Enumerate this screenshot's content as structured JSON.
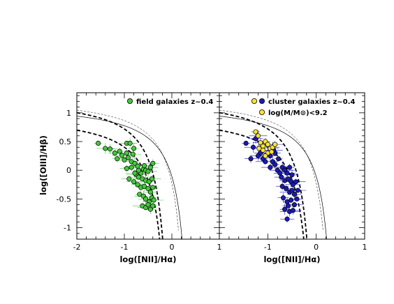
{
  "chart_data": [
    {
      "type": "scatter",
      "xlabel": "log([NII]/Hα)",
      "ylabel": "log([OIII]/Hβ)",
      "xlim": [
        -2,
        1
      ],
      "ylim": [
        -1.2,
        1.35
      ],
      "x_ticks": [
        "-2",
        "-1",
        "0",
        "1"
      ],
      "y_ticks": [
        "-1",
        "-0.5",
        "0",
        "0.5",
        "1"
      ],
      "legend": [
        {
          "label": "field galaxies z~0.4",
          "color": "#44c83c"
        }
      ],
      "legend_position": "top-right",
      "series": [
        {
          "name": "field galaxies z~0.4",
          "color": "#44c83c",
          "points": [
            [
              -1.55,
              0.47
            ],
            [
              -1.4,
              0.38
            ],
            [
              -1.3,
              0.37
            ],
            [
              -1.2,
              0.3
            ],
            [
              -1.15,
              0.2
            ],
            [
              -1.05,
              0.26
            ],
            [
              -0.95,
              0.47
            ],
            [
              -0.88,
              0.47
            ],
            [
              -0.8,
              0.38
            ],
            [
              -0.95,
              0.3
            ],
            [
              -0.92,
              0.22
            ],
            [
              -1.0,
              0.18
            ],
            [
              -0.85,
              0.15
            ],
            [
              -0.78,
              0.12
            ],
            [
              -0.72,
              0.07
            ],
            [
              -0.85,
              0.05
            ],
            [
              -0.95,
              0.03
            ],
            [
              -0.6,
              0.02
            ],
            [
              -0.55,
              0.0
            ],
            [
              -0.5,
              -0.02
            ],
            [
              -0.45,
              0.05
            ],
            [
              -0.4,
              0.12
            ],
            [
              -0.65,
              -0.05
            ],
            [
              -0.75,
              -0.08
            ],
            [
              -0.7,
              -0.12
            ],
            [
              -0.62,
              -0.15
            ],
            [
              -0.55,
              -0.18
            ],
            [
              -0.48,
              -0.2
            ],
            [
              -0.42,
              -0.15
            ],
            [
              -0.8,
              -0.2
            ],
            [
              -0.72,
              -0.25
            ],
            [
              -0.65,
              -0.3
            ],
            [
              -0.58,
              -0.28
            ],
            [
              -0.5,
              -0.32
            ],
            [
              -0.45,
              -0.38
            ],
            [
              -0.4,
              -0.3
            ],
            [
              -0.68,
              -0.42
            ],
            [
              -0.6,
              -0.45
            ],
            [
              -0.55,
              -0.5
            ],
            [
              -0.48,
              -0.55
            ],
            [
              -0.42,
              -0.48
            ],
            [
              -0.62,
              -0.62
            ],
            [
              -0.55,
              -0.65
            ],
            [
              -0.5,
              -0.6
            ],
            [
              -0.45,
              -0.68
            ],
            [
              -0.4,
              -0.62
            ],
            [
              -0.78,
              -0.05
            ],
            [
              -0.9,
              -0.15
            ],
            [
              -0.58,
              0.08
            ],
            [
              -0.7,
              0.0
            ],
            [
              -0.38,
              -0.52
            ],
            [
              -0.82,
              0.28
            ],
            [
              -1.1,
              0.33
            ]
          ]
        }
      ]
    },
    {
      "type": "scatter",
      "xlabel": "log([NII]/Hα)",
      "ylabel": "",
      "xlim": [
        -2,
        1
      ],
      "ylim": [
        -1.2,
        1.35
      ],
      "x_ticks": [
        "",
        "-1",
        "0",
        "1"
      ],
      "y_ticks": [],
      "legend": [
        {
          "label": "cluster galaxies z~0.4",
          "colors": [
            "#ffe433",
            "#1a1ab4"
          ]
        },
        {
          "label": "log(M/M⊙)<9.2",
          "color": "#ffe433"
        }
      ],
      "legend_position": "top-right",
      "series": [
        {
          "name": "cluster galaxies z~0.4",
          "color": "#1a1ab4",
          "points": [
            [
              -1.45,
              0.47
            ],
            [
              -1.3,
              0.4
            ],
            [
              -1.25,
              0.55
            ],
            [
              -1.15,
              0.3
            ],
            [
              -1.1,
              0.2
            ],
            [
              -1.05,
              0.15
            ],
            [
              -1.0,
              0.3
            ],
            [
              -0.95,
              0.25
            ],
            [
              -0.9,
              0.15
            ],
            [
              -0.85,
              0.1
            ],
            [
              -0.95,
              0.05
            ],
            [
              -0.8,
              0.0
            ],
            [
              -0.75,
              -0.05
            ],
            [
              -0.7,
              0.05
            ],
            [
              -0.65,
              0.0
            ],
            [
              -0.6,
              -0.05
            ],
            [
              -0.72,
              -0.12
            ],
            [
              -0.65,
              -0.18
            ],
            [
              -0.58,
              -0.15
            ],
            [
              -0.52,
              -0.2
            ],
            [
              -0.48,
              -0.25
            ],
            [
              -0.7,
              -0.28
            ],
            [
              -0.62,
              -0.32
            ],
            [
              -0.55,
              -0.38
            ],
            [
              -0.5,
              -0.35
            ],
            [
              -0.45,
              -0.42
            ],
            [
              -0.68,
              -0.48
            ],
            [
              -0.6,
              -0.55
            ],
            [
              -0.52,
              -0.52
            ],
            [
              -0.45,
              -0.6
            ],
            [
              -0.4,
              -0.5
            ],
            [
              -0.65,
              -0.68
            ],
            [
              -0.55,
              -0.72
            ],
            [
              -0.48,
              -0.7
            ],
            [
              -0.6,
              -0.85
            ],
            [
              -0.85,
              0.3
            ],
            [
              -0.78,
              0.2
            ],
            [
              -0.88,
              0.35
            ],
            [
              -1.2,
              0.25
            ],
            [
              -1.35,
              0.2
            ],
            [
              -0.55,
              0.05
            ],
            [
              -0.42,
              -0.2
            ],
            [
              -0.38,
              -0.35
            ],
            [
              -0.5,
              -0.08
            ],
            [
              -0.58,
              -0.62
            ]
          ]
        },
        {
          "name": "log(M/M⊙)<9.2",
          "color": "#ffe433",
          "points": [
            [
              -1.25,
              0.67
            ],
            [
              -1.2,
              0.6
            ],
            [
              -1.15,
              0.48
            ],
            [
              -1.1,
              0.42
            ],
            [
              -1.05,
              0.5
            ],
            [
              -1.0,
              0.45
            ],
            [
              -0.95,
              0.38
            ],
            [
              -0.9,
              0.4
            ],
            [
              -1.1,
              0.35
            ],
            [
              -1.0,
              0.3
            ],
            [
              -0.85,
              0.45
            ],
            [
              -1.05,
              0.25
            ],
            [
              -0.92,
              0.32
            ],
            [
              -1.18,
              0.38
            ]
          ]
        }
      ]
    }
  ]
}
